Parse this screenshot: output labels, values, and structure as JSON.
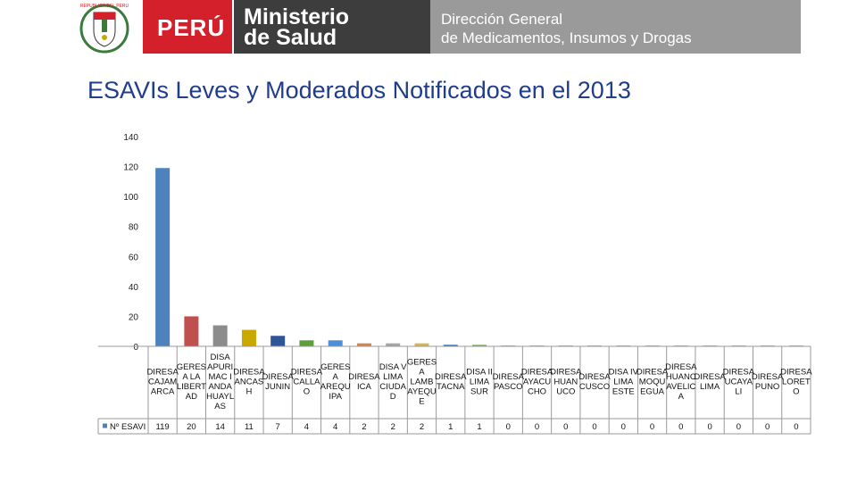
{
  "header": {
    "logo": "coat-of-arms-peru",
    "logo_text": "REPUBLICA DEL PERU",
    "country": "PERÚ",
    "ministry": [
      "Ministerio",
      "de Salud"
    ],
    "directorate": [
      "Dirección General",
      "de Medicamentos, Insumos y Drogas"
    ]
  },
  "chart_data": {
    "type": "bar",
    "title": "ESAVIs Leves y Moderados Notificados en el 2013",
    "xlabel": "",
    "ylabel": "",
    "ylim": [
      0,
      140
    ],
    "yticks": [
      0,
      20,
      40,
      60,
      80,
      100,
      120,
      140
    ],
    "grid": false,
    "legend": "data-table-left",
    "categories": [
      [
        "DIRESA",
        "CAJAM",
        "ARCA"
      ],
      [
        "GERES",
        "A LA",
        "LIBERT",
        "AD"
      ],
      [
        "DISA",
        "APURI",
        "MAC I",
        "ANDA",
        "HUAYL",
        "AS"
      ],
      [
        "DIRESA",
        "ANCAS",
        "H"
      ],
      [
        "DIRESA",
        "JUNIN"
      ],
      [
        "DIRESA",
        "CALLA",
        "O"
      ],
      [
        "GERES",
        "A",
        "AREQU",
        "IPA"
      ],
      [
        "DIRESA",
        "ICA"
      ],
      [
        "DISA V",
        "LIMA",
        "CIUDA",
        "D"
      ],
      [
        "GERES",
        "A",
        "LAMB",
        "AYEQU",
        "E"
      ],
      [
        "DIRESA",
        "TACNA"
      ],
      [
        "DISA II",
        "LIMA",
        "SUR"
      ],
      [
        "DIRESA",
        "PASCO"
      ],
      [
        "DIRESA",
        "AYACU",
        "CHO"
      ],
      [
        "DIRESA",
        "HUAN",
        "UCO"
      ],
      [
        "DIRESA",
        "CUSCO"
      ],
      [
        "DISA IV",
        "LIMA",
        "ESTE"
      ],
      [
        "DIRESA",
        "MOQU",
        "EGUA"
      ],
      [
        "DIRESA",
        "HUANC",
        "AVELIC",
        "A"
      ],
      [
        "DIRESA",
        "LIMA"
      ],
      [
        "DIRESA",
        "UCAYA",
        "LI"
      ],
      [
        "DIRESA",
        "PUNO"
      ],
      [
        "DIRESA",
        "LORET",
        "O"
      ]
    ],
    "series": [
      {
        "name": "Nº ESAVI",
        "values": [
          119,
          20,
          14,
          11,
          7,
          4,
          4,
          2,
          2,
          2,
          1,
          1,
          0,
          0,
          0,
          0,
          0,
          0,
          0,
          0,
          0,
          0,
          0
        ]
      }
    ],
    "colors": [
      "#4f81bd",
      "#c0504d",
      "#8c8c8c",
      "#c9a800",
      "#2e5597",
      "#5d9e3d",
      "#4f8fd6",
      "#d0874e",
      "#a6a6a6",
      "#d6b656",
      "#2f6fb0",
      "#7aab5a",
      "#4f81bd",
      "#4f81bd",
      "#4f81bd",
      "#4f81bd",
      "#4f81bd",
      "#4f81bd",
      "#4f81bd",
      "#4f81bd",
      "#4f81bd",
      "#4f81bd",
      "#4f81bd"
    ]
  }
}
